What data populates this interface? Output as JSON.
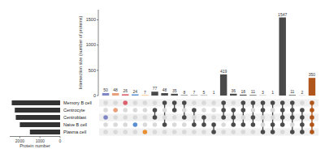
{
  "chart_data": {
    "type": "upset",
    "y_label": "Intersection size (number of proteins)",
    "ylim": [
      0,
      1700
    ],
    "yticks": [
      0,
      500,
      1000,
      1500
    ],
    "sets": [
      "Memory B cell",
      "Centrocyte",
      "Centroblast",
      "Naive B cell",
      "Plasma cell"
    ],
    "set_sizes": [
      2400,
      2250,
      2200,
      2000,
      1500
    ],
    "set_size_label": "Protein number",
    "xlim": [
      2500,
      0
    ],
    "xticks": [
      2000,
      1000,
      0
    ],
    "data_labels": true,
    "intersections": {
      "values": [
        50,
        48,
        26,
        24,
        7,
        77,
        48,
        35,
        8,
        7,
        5,
        1,
        419,
        36,
        18,
        11,
        3,
        1,
        1547,
        11,
        2,
        350
      ],
      "members": [
        [
          2
        ],
        [
          1
        ],
        [
          0
        ],
        [
          3
        ],
        [
          4
        ],
        [
          1,
          2
        ],
        [
          0,
          3
        ],
        [
          0,
          1
        ],
        [
          0,
          2
        ],
        [
          1,
          3
        ],
        [
          2,
          3
        ],
        [
          3,
          4
        ],
        [
          0,
          1,
          2
        ],
        [
          1,
          2,
          3
        ],
        [
          0,
          1,
          3
        ],
        [
          0,
          2,
          3
        ],
        [
          0,
          1,
          4
        ],
        [
          0,
          3,
          4
        ],
        [
          0,
          1,
          2,
          3
        ],
        [
          0,
          1,
          2,
          4
        ],
        [
          1,
          2,
          3,
          4
        ],
        [
          0,
          1,
          2,
          3,
          4
        ]
      ],
      "colors": [
        "#7f86c6",
        "#e9a07a",
        "#d9606a",
        "#5b8fd0",
        "#e8902f",
        "#4a4a4a",
        "#4a4a4a",
        "#4a4a4a",
        "#4a4a4a",
        "#4a4a4a",
        "#4a4a4a",
        "#4a4a4a",
        "#4a4a4a",
        "#4a4a4a",
        "#4a4a4a",
        "#4a4a4a",
        "#4a4a4a",
        "#4a4a4a",
        "#4a4a4a",
        "#4a4a4a",
        "#4a4a4a",
        "#b0561c"
      ]
    }
  }
}
